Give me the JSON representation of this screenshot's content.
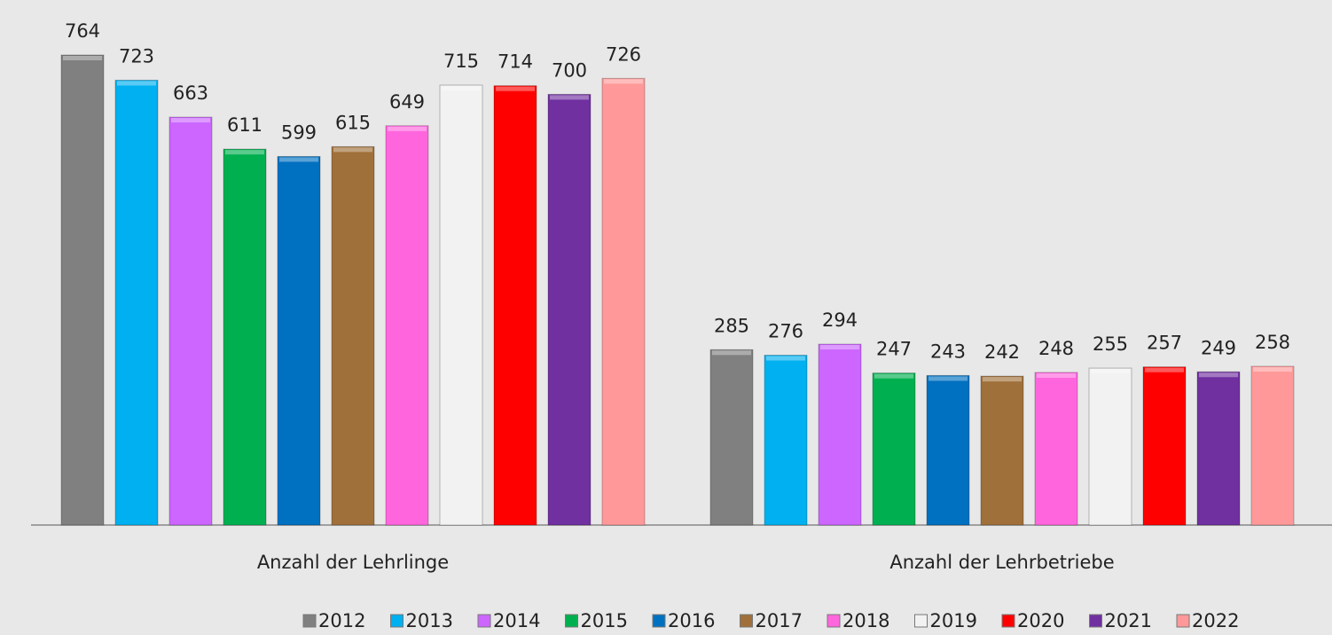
{
  "chart_data": {
    "type": "bar",
    "categories": [
      "Anzahl der Lehrlinge",
      "Anzahl der Lehrbetriebe"
    ],
    "series": [
      {
        "name": "2012",
        "color": "#808080",
        "values": [
          764,
          285
        ]
      },
      {
        "name": "2013",
        "color": "#00b0f0",
        "values": [
          723,
          276
        ]
      },
      {
        "name": "2014",
        "color": "#cc66ff",
        "values": [
          663,
          294
        ]
      },
      {
        "name": "2015",
        "color": "#00b050",
        "values": [
          611,
          247
        ]
      },
      {
        "name": "2016",
        "color": "#0070c0",
        "values": [
          599,
          243
        ]
      },
      {
        "name": "2017",
        "color": "#a0703a",
        "values": [
          615,
          242
        ]
      },
      {
        "name": "2018",
        "color": "#ff66dd",
        "values": [
          649,
          248
        ]
      },
      {
        "name": "2019",
        "color": "#f2f2f2",
        "values": [
          715,
          255
        ]
      },
      {
        "name": "2020",
        "color": "#ff0000",
        "values": [
          714,
          257
        ]
      },
      {
        "name": "2021",
        "color": "#7030a0",
        "values": [
          700,
          249
        ]
      },
      {
        "name": "2022",
        "color": "#ff9999",
        "values": [
          726,
          258
        ]
      }
    ],
    "legend": "bottom"
  }
}
